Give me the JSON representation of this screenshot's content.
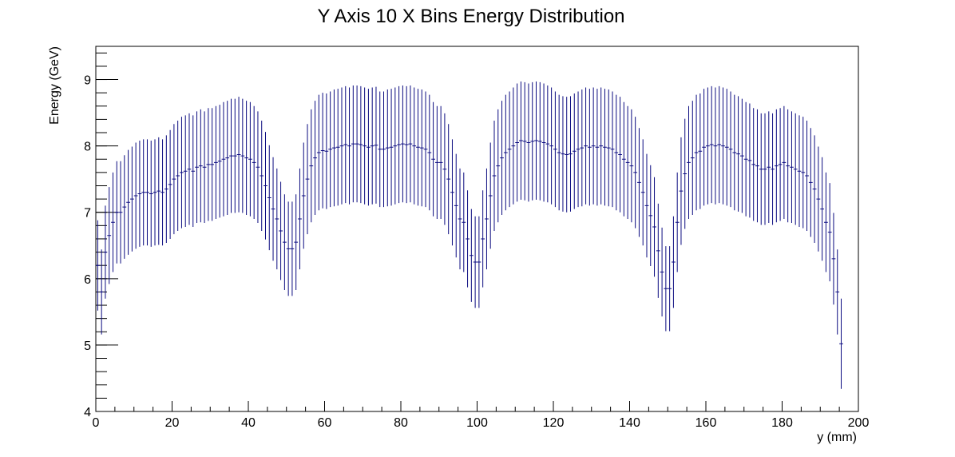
{
  "chart_data": {
    "type": "errorbar",
    "title": "Y Axis 10 X Bins Energy Distribution",
    "x_label": "y (mm)",
    "y_label": "Energy (GeV)",
    "color": "#0b0b80",
    "xlim": [
      0,
      200
    ],
    "xticks": [
      0,
      20,
      40,
      60,
      80,
      100,
      120,
      140,
      160,
      180,
      200
    ],
    "ylim": [
      4,
      9.5
    ],
    "yticks": [
      4,
      5,
      6,
      7,
      8,
      9
    ],
    "x": [
      0.5,
      1.5,
      2.5,
      3.5,
      4.5,
      5.5,
      6.5,
      7.5,
      8.5,
      9.5,
      10.5,
      11.5,
      12.5,
      13.5,
      14.5,
      15.5,
      16.5,
      17.5,
      18.5,
      19.5,
      20.5,
      21.5,
      22.5,
      23.5,
      24.5,
      25.5,
      26.5,
      27.5,
      28.5,
      29.5,
      30.5,
      31.5,
      32.5,
      33.5,
      34.5,
      35.5,
      36.5,
      37.5,
      38.5,
      39.5,
      40.5,
      41.5,
      42.5,
      43.5,
      44.5,
      45.5,
      46.5,
      47.5,
      48.5,
      49.5,
      50.5,
      51.5,
      52.5,
      53.5,
      54.5,
      55.5,
      56.5,
      57.5,
      58.5,
      59.5,
      60.5,
      61.5,
      62.5,
      63.5,
      64.5,
      65.5,
      66.5,
      67.5,
      68.5,
      69.5,
      70.5,
      71.5,
      72.5,
      73.5,
      74.5,
      75.5,
      76.5,
      77.5,
      78.5,
      79.5,
      80.5,
      81.5,
      82.5,
      83.5,
      84.5,
      85.5,
      86.5,
      87.5,
      88.5,
      89.5,
      90.5,
      91.5,
      92.5,
      93.5,
      94.5,
      95.5,
      96.5,
      97.5,
      98.5,
      99.5,
      100.5,
      101.5,
      102.5,
      103.5,
      104.5,
      105.5,
      106.5,
      107.5,
      108.5,
      109.5,
      110.5,
      111.5,
      112.5,
      113.5,
      114.5,
      115.5,
      116.5,
      117.5,
      118.5,
      119.5,
      120.5,
      121.5,
      122.5,
      123.5,
      124.5,
      125.5,
      126.5,
      127.5,
      128.5,
      129.5,
      130.5,
      131.5,
      132.5,
      133.5,
      134.5,
      135.5,
      136.5,
      137.5,
      138.5,
      139.5,
      140.5,
      141.5,
      142.5,
      143.5,
      144.5,
      145.5,
      146.5,
      147.5,
      148.5,
      149.5,
      150.5,
      151.5,
      152.5,
      153.5,
      154.5,
      155.5,
      156.5,
      157.5,
      158.5,
      159.5,
      160.5,
      161.5,
      162.5,
      163.5,
      164.5,
      165.5,
      166.5,
      167.5,
      168.5,
      169.5,
      170.5,
      171.5,
      172.5,
      173.5,
      174.5,
      175.5,
      176.5,
      177.5,
      178.5,
      179.5,
      180.5,
      181.5,
      182.5,
      183.5,
      184.5,
      185.5,
      186.5,
      187.5,
      188.5,
      189.5,
      190.5,
      191.5,
      192.5,
      193.5,
      194.5,
      195.5
    ],
    "values": [
      6.2,
      5.8,
      6.4,
      6.65,
      6.85,
      7.0,
      7.0,
      7.08,
      7.15,
      7.2,
      7.25,
      7.28,
      7.3,
      7.3,
      7.28,
      7.3,
      7.32,
      7.3,
      7.35,
      7.42,
      7.5,
      7.55,
      7.6,
      7.62,
      7.65,
      7.62,
      7.68,
      7.7,
      7.68,
      7.72,
      7.72,
      7.75,
      7.77,
      7.8,
      7.82,
      7.85,
      7.85,
      7.87,
      7.85,
      7.82,
      7.8,
      7.75,
      7.68,
      7.55,
      7.4,
      7.22,
      7.05,
      6.9,
      6.72,
      6.55,
      6.45,
      6.45,
      6.55,
      6.9,
      7.25,
      7.5,
      7.7,
      7.82,
      7.9,
      7.93,
      7.92,
      7.95,
      7.97,
      7.98,
      8.0,
      8.02,
      8.0,
      8.03,
      8.03,
      8.02,
      8.0,
      7.98,
      8.0,
      8.01,
      7.95,
      7.95,
      7.97,
      7.98,
      8.0,
      8.02,
      8.03,
      8.02,
      8.03,
      8.0,
      7.98,
      7.97,
      7.95,
      7.9,
      7.8,
      7.75,
      7.75,
      7.65,
      7.5,
      7.3,
      7.1,
      6.9,
      6.85,
      6.6,
      6.35,
      6.25,
      6.25,
      6.6,
      6.9,
      7.25,
      7.55,
      7.7,
      7.82,
      7.9,
      7.95,
      8.0,
      8.05,
      8.08,
      8.07,
      8.05,
      8.07,
      8.08,
      8.07,
      8.05,
      8.03,
      8.0,
      7.95,
      7.9,
      7.88,
      7.87,
      7.88,
      7.92,
      7.95,
      7.97,
      8.0,
      7.98,
      8.0,
      7.98,
      8.0,
      7.98,
      7.97,
      7.95,
      7.9,
      7.87,
      7.8,
      7.75,
      7.7,
      7.6,
      7.45,
      7.3,
      7.1,
      6.95,
      6.78,
      6.42,
      6.1,
      5.85,
      5.85,
      6.25,
      6.85,
      7.32,
      7.58,
      7.75,
      7.82,
      7.9,
      7.92,
      7.98,
      8.0,
      8.02,
      8.0,
      8.02,
      8.0,
      7.98,
      7.95,
      7.9,
      7.88,
      7.85,
      7.8,
      7.78,
      7.72,
      7.7,
      7.65,
      7.65,
      7.68,
      7.65,
      7.7,
      7.72,
      7.75,
      7.7,
      7.68,
      7.65,
      7.62,
      7.6,
      7.55,
      7.45,
      7.35,
      7.2,
      7.05,
      6.85,
      6.7,
      6.3,
      5.8,
      5.02
    ],
    "errors": [
      0.68,
      0.64,
      0.7,
      0.73,
      0.75,
      0.77,
      0.77,
      0.78,
      0.79,
      0.79,
      0.8,
      0.8,
      0.8,
      0.8,
      0.8,
      0.8,
      0.81,
      0.8,
      0.81,
      0.82,
      0.83,
      0.83,
      0.84,
      0.84,
      0.84,
      0.84,
      0.84,
      0.85,
      0.84,
      0.85,
      0.85,
      0.85,
      0.85,
      0.86,
      0.86,
      0.86,
      0.86,
      0.87,
      0.86,
      0.86,
      0.86,
      0.85,
      0.84,
      0.83,
      0.81,
      0.79,
      0.78,
      0.76,
      0.74,
      0.72,
      0.71,
      0.71,
      0.72,
      0.76,
      0.8,
      0.83,
      0.85,
      0.86,
      0.87,
      0.87,
      0.87,
      0.87,
      0.88,
      0.88,
      0.88,
      0.88,
      0.88,
      0.88,
      0.88,
      0.88,
      0.88,
      0.88,
      0.88,
      0.88,
      0.87,
      0.87,
      0.88,
      0.88,
      0.88,
      0.88,
      0.88,
      0.88,
      0.88,
      0.88,
      0.88,
      0.88,
      0.87,
      0.87,
      0.86,
      0.85,
      0.85,
      0.84,
      0.83,
      0.8,
      0.78,
      0.76,
      0.75,
      0.73,
      0.7,
      0.69,
      0.69,
      0.73,
      0.76,
      0.8,
      0.83,
      0.85,
      0.86,
      0.87,
      0.87,
      0.88,
      0.89,
      0.89,
      0.89,
      0.89,
      0.89,
      0.89,
      0.89,
      0.89,
      0.88,
      0.88,
      0.87,
      0.87,
      0.87,
      0.87,
      0.87,
      0.87,
      0.87,
      0.88,
      0.88,
      0.88,
      0.88,
      0.88,
      0.88,
      0.88,
      0.88,
      0.87,
      0.87,
      0.87,
      0.86,
      0.85,
      0.85,
      0.84,
      0.82,
      0.8,
      0.78,
      0.76,
      0.75,
      0.71,
      0.67,
      0.64,
      0.64,
      0.69,
      0.75,
      0.81,
      0.83,
      0.85,
      0.86,
      0.87,
      0.87,
      0.88,
      0.88,
      0.88,
      0.88,
      0.88,
      0.88,
      0.88,
      0.87,
      0.87,
      0.87,
      0.86,
      0.86,
      0.86,
      0.85,
      0.85,
      0.84,
      0.84,
      0.84,
      0.84,
      0.85,
      0.85,
      0.85,
      0.85,
      0.84,
      0.84,
      0.84,
      0.84,
      0.83,
      0.82,
      0.81,
      0.79,
      0.78,
      0.75,
      0.74,
      0.69,
      0.64,
      0.68
    ]
  }
}
